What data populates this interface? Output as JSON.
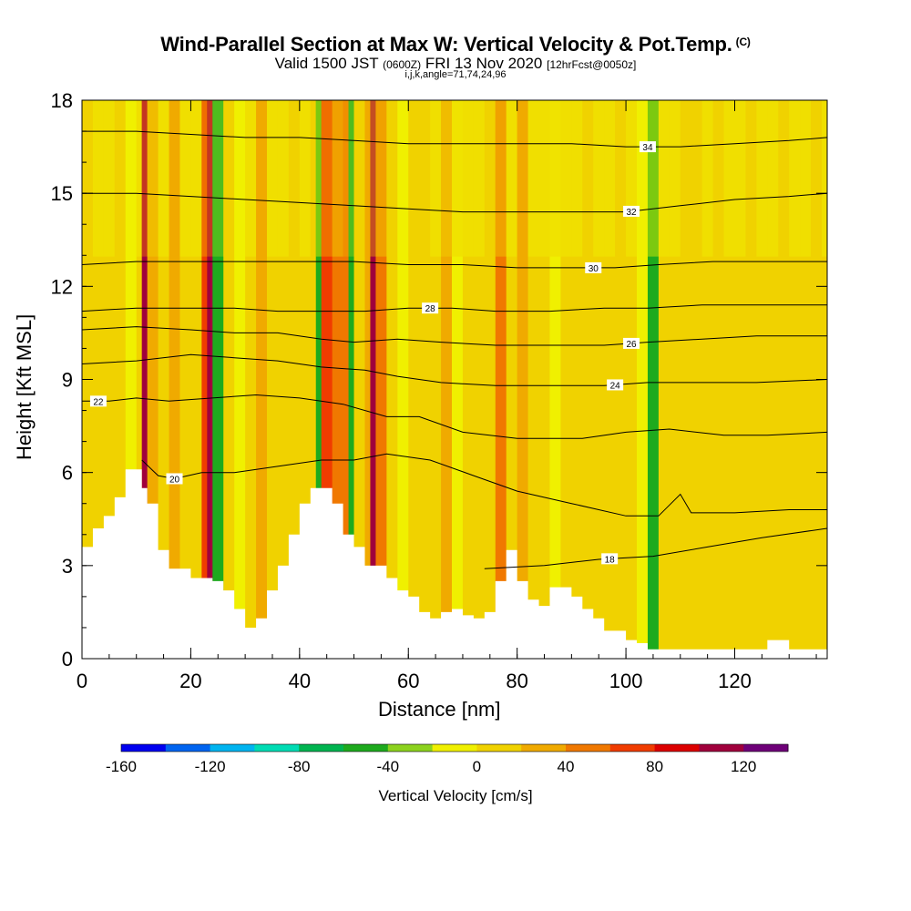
{
  "chart_data": {
    "type": "heatmap",
    "title": "Wind-Parallel Section at Max W: Vertical Velocity & Pot.Temp.",
    "title_mark": "(C)",
    "subtitle_main": "Valid 1500 JST",
    "subtitle_z": "(0600Z)",
    "subtitle_date": "FRI 13 Nov 2020",
    "subtitle_fcst": "[12hrFcst@0050z]",
    "subtitle2": "i,j,k,angle=71,74,24,96",
    "xlabel": "Distance [nm]",
    "ylabel": "Height [Kft MSL]",
    "xlim": [
      0,
      137
    ],
    "ylim": [
      0,
      18
    ],
    "x_ticks": [
      "0",
      "20",
      "40",
      "60",
      "80",
      "100",
      "120"
    ],
    "y_ticks": [
      "0",
      "3",
      "6",
      "9",
      "12",
      "15",
      "18"
    ],
    "colorbar": {
      "label": "Vertical Velocity [cm/s]",
      "tick_labels": [
        "-160",
        "-120",
        "-80",
        "-40",
        "0",
        "40",
        "80",
        "120"
      ],
      "colors": [
        "#0000f0",
        "#0064f0",
        "#00b4f0",
        "#00dcb4",
        "#00b450",
        "#1eaa1e",
        "#8cd21e",
        "#f0f000",
        "#f0d200",
        "#f0aa00",
        "#f07800",
        "#f03c00",
        "#dc0000",
        "#a0003c",
        "#6e0078"
      ]
    },
    "columns": [
      {
        "x": 0,
        "top": 3.6,
        "w": 10
      },
      {
        "x": 2,
        "top": 4.2,
        "w": 5
      },
      {
        "x": 4,
        "top": 4.6,
        "w": 2
      },
      {
        "x": 6,
        "top": 5.2,
        "w": 5
      },
      {
        "x": 8,
        "top": 6.1,
        "w": -15
      },
      {
        "x": 10,
        "top": 6.1,
        "w": 5
      },
      {
        "x": 11,
        "top": 5.5,
        "w": 100
      },
      {
        "x": 12,
        "top": 5.0,
        "w": 35
      },
      {
        "x": 14,
        "top": 3.5,
        "w": 10
      },
      {
        "x": 16,
        "top": 2.9,
        "w": 30
      },
      {
        "x": 18,
        "top": 2.9,
        "w": 5
      },
      {
        "x": 20,
        "top": 2.6,
        "w": 5
      },
      {
        "x": 22,
        "top": 2.6,
        "w": 60
      },
      {
        "x": 23,
        "top": 2.6,
        "w": 115
      },
      {
        "x": 24,
        "top": 2.5,
        "w": -60
      },
      {
        "x": 26,
        "top": 2.2,
        "w": 15
      },
      {
        "x": 28,
        "top": 1.6,
        "w": -10
      },
      {
        "x": 30,
        "top": 1.0,
        "w": 10
      },
      {
        "x": 32,
        "top": 1.3,
        "w": 20
      },
      {
        "x": 34,
        "top": 2.2,
        "w": 5
      },
      {
        "x": 36,
        "top": 3.0,
        "w": 10
      },
      {
        "x": 38,
        "top": 4.0,
        "w": 5
      },
      {
        "x": 40,
        "top": 5.0,
        "w": 10
      },
      {
        "x": 42,
        "top": 5.5,
        "w": 15
      },
      {
        "x": 43,
        "top": 5.5,
        "w": -50
      },
      {
        "x": 44,
        "top": 5.5,
        "w": 75
      },
      {
        "x": 46,
        "top": 5.0,
        "w": 50
      },
      {
        "x": 48,
        "top": 4.0,
        "w": 40
      },
      {
        "x": 49,
        "top": 4.0,
        "w": -55
      },
      {
        "x": 50,
        "top": 3.6,
        "w": 15
      },
      {
        "x": 52,
        "top": 3.0,
        "w": 20
      },
      {
        "x": 53,
        "top": 3.0,
        "w": 110
      },
      {
        "x": 54,
        "top": 3.0,
        "w": 45
      },
      {
        "x": 56,
        "top": 2.6,
        "w": 5
      },
      {
        "x": 58,
        "top": 2.2,
        "w": -15
      },
      {
        "x": 60,
        "top": 2.0,
        "w": 15
      },
      {
        "x": 62,
        "top": 1.5,
        "w": 5
      },
      {
        "x": 64,
        "top": 1.3,
        "w": 10
      },
      {
        "x": 66,
        "top": 1.5,
        "w": 20
      },
      {
        "x": 68,
        "top": 1.6,
        "w": -15
      },
      {
        "x": 70,
        "top": 1.4,
        "w": 5
      },
      {
        "x": 72,
        "top": 1.3,
        "w": 10
      },
      {
        "x": 74,
        "top": 1.5,
        "w": 5
      },
      {
        "x": 76,
        "top": 2.5,
        "w": 40
      },
      {
        "x": 78,
        "top": 3.5,
        "w": 10
      },
      {
        "x": 80,
        "top": 2.5,
        "w": 20
      },
      {
        "x": 82,
        "top": 1.9,
        "w": 5
      },
      {
        "x": 84,
        "top": 1.7,
        "w": 10
      },
      {
        "x": 86,
        "top": 2.3,
        "w": -5
      },
      {
        "x": 88,
        "top": 2.3,
        "w": 5
      },
      {
        "x": 90,
        "top": 2.0,
        "w": 10
      },
      {
        "x": 92,
        "top": 1.6,
        "w": 15
      },
      {
        "x": 94,
        "top": 1.3,
        "w": 5
      },
      {
        "x": 96,
        "top": 0.9,
        "w": 10
      },
      {
        "x": 98,
        "top": 0.9,
        "w": 5
      },
      {
        "x": 100,
        "top": 0.6,
        "w": 10
      },
      {
        "x": 102,
        "top": 0.5,
        "w": -20
      },
      {
        "x": 104,
        "top": 0.3,
        "w": -55
      },
      {
        "x": 106,
        "top": 0.3,
        "w": 5
      },
      {
        "x": 108,
        "top": 0.3,
        "w": 10
      },
      {
        "x": 110,
        "top": 0.3,
        "w": 5
      },
      {
        "x": 112,
        "top": 0.3,
        "w": 15
      },
      {
        "x": 114,
        "top": 0.3,
        "w": 5
      },
      {
        "x": 116,
        "top": 0.3,
        "w": 10
      },
      {
        "x": 118,
        "top": 0.3,
        "w": 5
      },
      {
        "x": 120,
        "top": 0.3,
        "w": 10
      },
      {
        "x": 122,
        "top": 0.3,
        "w": 5
      },
      {
        "x": 124,
        "top": 0.3,
        "w": 10
      },
      {
        "x": 126,
        "top": 0.6,
        "w": 5
      },
      {
        "x": 128,
        "top": 0.6,
        "w": 15
      },
      {
        "x": 130,
        "top": 0.3,
        "w": 5
      },
      {
        "x": 132,
        "top": 0.3,
        "w": 10
      },
      {
        "x": 134,
        "top": 0.3,
        "w": 5
      },
      {
        "x": 136,
        "top": 0.3,
        "w": 10
      }
    ],
    "isentropes": [
      {
        "label": "18",
        "label_x": 97,
        "points": [
          [
            74,
            2.9
          ],
          [
            85,
            3.0
          ],
          [
            95,
            3.2
          ],
          [
            105,
            3.3
          ],
          [
            115,
            3.6
          ],
          [
            125,
            3.9
          ],
          [
            137,
            4.2
          ]
        ]
      },
      {
        "label": "20",
        "label_x": 17,
        "points": [
          [
            11,
            6.4
          ],
          [
            14,
            5.9
          ],
          [
            17,
            5.8
          ],
          [
            22,
            6.0
          ],
          [
            28,
            6.0
          ],
          [
            36,
            6.2
          ],
          [
            44,
            6.4
          ],
          [
            50,
            6.4
          ],
          [
            56,
            6.6
          ],
          [
            64,
            6.4
          ],
          [
            72,
            5.9
          ],
          [
            80,
            5.4
          ],
          [
            90,
            5.0
          ],
          [
            100,
            4.6
          ],
          [
            106,
            4.6
          ],
          [
            110,
            5.3
          ],
          [
            112,
            4.7
          ],
          [
            120,
            4.7
          ],
          [
            130,
            4.8
          ],
          [
            137,
            4.8
          ]
        ]
      },
      {
        "label": "22",
        "label_x": 3,
        "points": [
          [
            0,
            8.3
          ],
          [
            5,
            8.3
          ],
          [
            10,
            8.4
          ],
          [
            16,
            8.3
          ],
          [
            24,
            8.4
          ],
          [
            32,
            8.5
          ],
          [
            40,
            8.4
          ],
          [
            48,
            8.2
          ],
          [
            56,
            7.8
          ],
          [
            62,
            7.8
          ],
          [
            70,
            7.3
          ],
          [
            80,
            7.1
          ],
          [
            92,
            7.1
          ],
          [
            100,
            7.3
          ],
          [
            108,
            7.4
          ],
          [
            118,
            7.2
          ],
          [
            126,
            7.2
          ],
          [
            137,
            7.3
          ]
        ]
      },
      {
        "label": "24",
        "label_x": 98,
        "points": [
          [
            0,
            9.5
          ],
          [
            10,
            9.6
          ],
          [
            20,
            9.8
          ],
          [
            28,
            9.7
          ],
          [
            36,
            9.6
          ],
          [
            44,
            9.4
          ],
          [
            52,
            9.3
          ],
          [
            58,
            9.1
          ],
          [
            66,
            8.9
          ],
          [
            76,
            8.8
          ],
          [
            86,
            8.8
          ],
          [
            96,
            8.8
          ],
          [
            104,
            8.9
          ],
          [
            114,
            8.9
          ],
          [
            124,
            8.9
          ],
          [
            137,
            9.0
          ]
        ]
      },
      {
        "label": "26",
        "label_x": 101,
        "points": [
          [
            0,
            10.6
          ],
          [
            10,
            10.7
          ],
          [
            20,
            10.6
          ],
          [
            28,
            10.5
          ],
          [
            36,
            10.5
          ],
          [
            44,
            10.3
          ],
          [
            50,
            10.2
          ],
          [
            58,
            10.3
          ],
          [
            66,
            10.2
          ],
          [
            76,
            10.1
          ],
          [
            86,
            10.1
          ],
          [
            96,
            10.1
          ],
          [
            104,
            10.2
          ],
          [
            114,
            10.3
          ],
          [
            124,
            10.4
          ],
          [
            137,
            10.4
          ]
        ]
      },
      {
        "label": "28",
        "label_x": 64,
        "points": [
          [
            0,
            11.2
          ],
          [
            10,
            11.3
          ],
          [
            20,
            11.3
          ],
          [
            28,
            11.3
          ],
          [
            36,
            11.2
          ],
          [
            44,
            11.2
          ],
          [
            52,
            11.2
          ],
          [
            60,
            11.3
          ],
          [
            68,
            11.3
          ],
          [
            76,
            11.2
          ],
          [
            86,
            11.2
          ],
          [
            96,
            11.3
          ],
          [
            104,
            11.3
          ],
          [
            114,
            11.4
          ],
          [
            124,
            11.4
          ],
          [
            137,
            11.4
          ]
        ]
      },
      {
        "label": "30",
        "label_x": 94,
        "points": [
          [
            0,
            12.7
          ],
          [
            10,
            12.8
          ],
          [
            20,
            12.8
          ],
          [
            30,
            12.8
          ],
          [
            40,
            12.8
          ],
          [
            50,
            12.8
          ],
          [
            60,
            12.7
          ],
          [
            70,
            12.7
          ],
          [
            80,
            12.6
          ],
          [
            90,
            12.6
          ],
          [
            98,
            12.6
          ],
          [
            106,
            12.7
          ],
          [
            116,
            12.8
          ],
          [
            126,
            12.8
          ],
          [
            137,
            12.8
          ]
        ]
      },
      {
        "label": "32",
        "label_x": 101,
        "points": [
          [
            0,
            15.0
          ],
          [
            10,
            15.0
          ],
          [
            20,
            14.9
          ],
          [
            30,
            14.8
          ],
          [
            40,
            14.7
          ],
          [
            50,
            14.6
          ],
          [
            60,
            14.5
          ],
          [
            70,
            14.4
          ],
          [
            80,
            14.4
          ],
          [
            90,
            14.4
          ],
          [
            100,
            14.4
          ],
          [
            110,
            14.6
          ],
          [
            120,
            14.8
          ],
          [
            130,
            14.9
          ],
          [
            137,
            15.0
          ]
        ]
      },
      {
        "label": "34",
        "label_x": 104,
        "points": [
          [
            0,
            17.0
          ],
          [
            10,
            17.0
          ],
          [
            20,
            16.9
          ],
          [
            30,
            16.8
          ],
          [
            40,
            16.8
          ],
          [
            50,
            16.7
          ],
          [
            60,
            16.6
          ],
          [
            70,
            16.6
          ],
          [
            80,
            16.6
          ],
          [
            90,
            16.6
          ],
          [
            100,
            16.5
          ],
          [
            110,
            16.5
          ],
          [
            120,
            16.6
          ],
          [
            130,
            16.7
          ],
          [
            137,
            16.8
          ]
        ]
      }
    ]
  }
}
